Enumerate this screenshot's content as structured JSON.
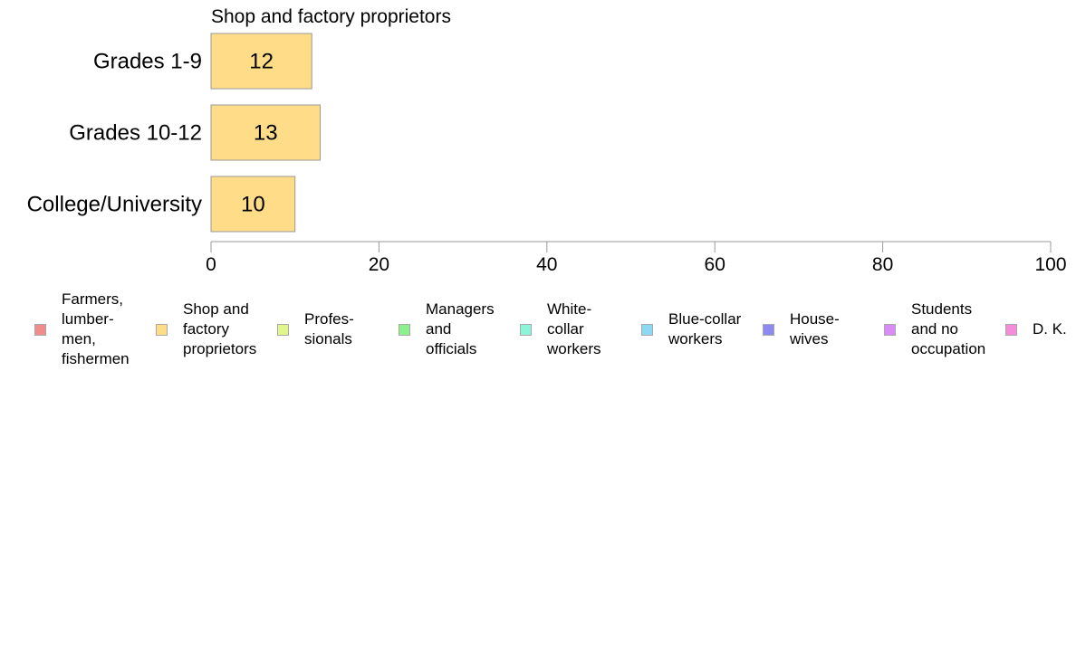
{
  "chart_data": {
    "type": "bar",
    "orientation": "horizontal",
    "title": "Shop and factory proprietors",
    "categories": [
      "Grades 1-9",
      "Grades 10-12",
      "College/University"
    ],
    "values": [
      12,
      13,
      10
    ],
    "data_labels": [
      "12",
      "13",
      "10"
    ],
    "xlim": [
      0,
      100
    ],
    "xticks": [
      0,
      20,
      40,
      60,
      80,
      100
    ],
    "xtick_labels": [
      "0",
      "20",
      "40",
      "60",
      "80",
      "100"
    ],
    "bar_color": "#ffdd88",
    "bar_border_color": "#999999",
    "grid": false,
    "legend_placement": "bottom",
    "legend": [
      {
        "label": "Farmers,\nlumber-\nmen,\nfishermen",
        "color": "#f08c8c"
      },
      {
        "label": "Shop and\nfactory\nproprietors",
        "color": "#ffdd88"
      },
      {
        "label": "Profes-\nsionals",
        "color": "#e0f58c"
      },
      {
        "label": "Managers\nand\nofficials",
        "color": "#8cf08c"
      },
      {
        "label": "White-\ncollar\nworkers",
        "color": "#8cf5d9"
      },
      {
        "label": "Blue-collar\nworkers",
        "color": "#8cd9f5"
      },
      {
        "label": "House-\nwives",
        "color": "#8c8cf0"
      },
      {
        "label": "Students\nand no\noccupation",
        "color": "#d98cf5"
      },
      {
        "label": "D. K.",
        "color": "#f58cd9"
      }
    ]
  }
}
